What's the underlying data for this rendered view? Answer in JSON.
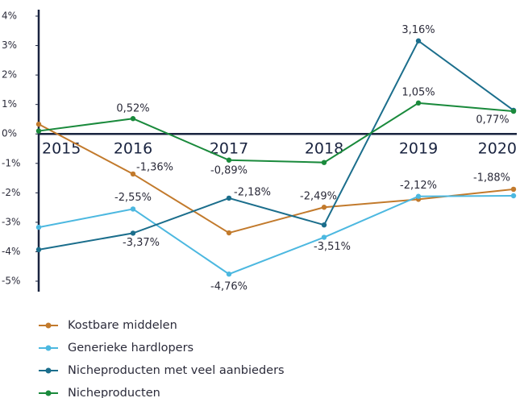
{
  "chart_data": {
    "type": "line",
    "categories": [
      "2015",
      "2016",
      "2017",
      "2018",
      "2019",
      "2020"
    ],
    "ylim": [
      -5,
      4
    ],
    "yticks": [
      {
        "value": 4,
        "label": "4%"
      },
      {
        "value": 3,
        "label": "3%"
      },
      {
        "value": 2,
        "label": "2%"
      },
      {
        "value": 1,
        "label": "1%"
      },
      {
        "value": 0,
        "label": "0%"
      },
      {
        "value": -1,
        "label": "-1%"
      },
      {
        "value": -2,
        "label": "-2%"
      },
      {
        "value": -3,
        "label": "-3%"
      },
      {
        "value": -4,
        "label": "-4%"
      },
      {
        "value": -5,
        "label": "-5%"
      }
    ],
    "legend": "bottom",
    "series": [
      {
        "name": "Kostbare middelen",
        "color": "#c27a2c",
        "values": [
          0.33,
          -1.36,
          -3.36,
          -2.49,
          -2.22,
          -1.88
        ],
        "value_labels": [
          null,
          "-1,36%",
          null,
          "-2,49%",
          null,
          "-1,88%"
        ]
      },
      {
        "name": "Generieke hardlopers",
        "color": "#4cb8e0",
        "values": [
          -3.17,
          -2.55,
          -4.76,
          -3.51,
          -2.12,
          -2.1
        ],
        "value_labels": [
          null,
          "-2,55%",
          "-4,76%",
          "-3,51%",
          "-2,12%",
          null
        ]
      },
      {
        "name": "Nicheproducten met veel aanbieders",
        "color": "#1b6e8c",
        "values": [
          -3.93,
          -3.37,
          -2.18,
          -3.09,
          3.16,
          0.8
        ],
        "value_labels": [
          null,
          "-3,37%",
          "-2,18%",
          null,
          "3,16%",
          null
        ]
      },
      {
        "name": "Nicheproducten",
        "color": "#1a8a3c",
        "values": [
          0.1,
          0.52,
          -0.89,
          -0.97,
          1.05,
          0.77
        ],
        "value_labels": [
          null,
          "0,52%",
          "-0,89%",
          null,
          "1,05%",
          "0,77%"
        ]
      }
    ]
  }
}
